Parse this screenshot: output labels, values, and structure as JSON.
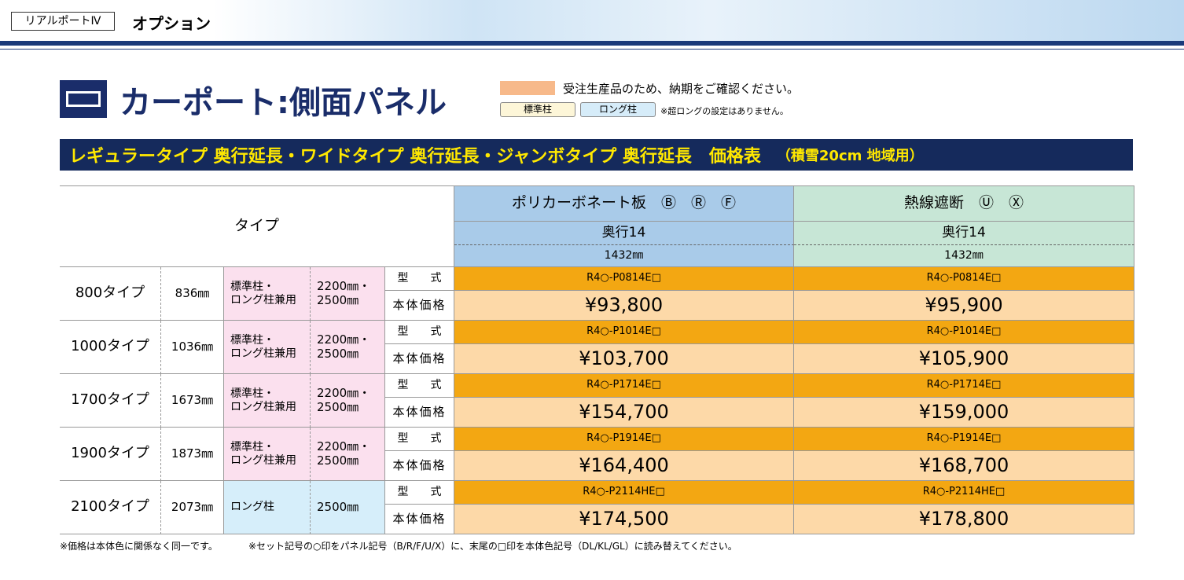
{
  "header": {
    "product": "リアルポートⅣ",
    "section": "オプション"
  },
  "title": "カーポート:側面パネル",
  "legend": {
    "made_to_order": "受注生産品のため、納期をご確認ください。",
    "standard": "標準柱",
    "long": "ロング柱",
    "note": "※超ロングの設定はありません。"
  },
  "banner": {
    "text": "レギュラータイプ 奥行延長・ワイドタイプ 奥行延長・ジャンボタイプ 奥行延長　価格表",
    "note": "（積雪20cm 地域用）"
  },
  "table": {
    "type_header": "タイプ",
    "columns": [
      {
        "name": "ポリカーボネート板　Ⓑ　Ⓡ　Ⓕ",
        "depth": "奥行14",
        "size": "1432㎜"
      },
      {
        "name": "熱線遮断　Ⓤ　Ⓧ",
        "depth": "奥行14",
        "size": "1432㎜"
      }
    ],
    "model_label": "型　　式",
    "price_label": "本体価格",
    "rows": [
      {
        "type": "800タイプ",
        "width": "836㎜",
        "pillar": [
          "標準柱・",
          "ロング柱兼用"
        ],
        "height": [
          "2200㎜・",
          "2500㎜"
        ],
        "models": [
          "R4○-P0814E□",
          "R4○-P0814E□"
        ],
        "prices": [
          "¥93,800",
          "¥95,900"
        ]
      },
      {
        "type": "1000タイプ",
        "width": "1036㎜",
        "pillar": [
          "標準柱・",
          "ロング柱兼用"
        ],
        "height": [
          "2200㎜・",
          "2500㎜"
        ],
        "models": [
          "R4○-P1014E□",
          "R4○-P1014E□"
        ],
        "prices": [
          "¥103,700",
          "¥105,900"
        ]
      },
      {
        "type": "1700タイプ",
        "width": "1673㎜",
        "pillar": [
          "標準柱・",
          "ロング柱兼用"
        ],
        "height": [
          "2200㎜・",
          "2500㎜"
        ],
        "models": [
          "R4○-P1714E□",
          "R4○-P1714E□"
        ],
        "prices": [
          "¥154,700",
          "¥159,000"
        ]
      },
      {
        "type": "1900タイプ",
        "width": "1873㎜",
        "pillar": [
          "標準柱・",
          "ロング柱兼用"
        ],
        "height": [
          "2200㎜・",
          "2500㎜"
        ],
        "models": [
          "R4○-P1914E□",
          "R4○-P1914E□"
        ],
        "prices": [
          "¥164,400",
          "¥168,700"
        ]
      },
      {
        "type": "2100タイプ",
        "width": "2073㎜",
        "pillar": [
          "ロング柱"
        ],
        "height": [
          "2500㎜"
        ],
        "models": [
          "R4○-P2114HE□",
          "R4○-P2114HE□"
        ],
        "prices": [
          "¥174,500",
          "¥178,800"
        ]
      }
    ]
  },
  "footnotes": [
    "※価格は本体色に関係なく同一です。",
    "※セット記号の○印をパネル記号（B/R/F/U/X）に、末尾の□印を本体色記号（DL/KL/GL）に読み替えてください。"
  ]
}
